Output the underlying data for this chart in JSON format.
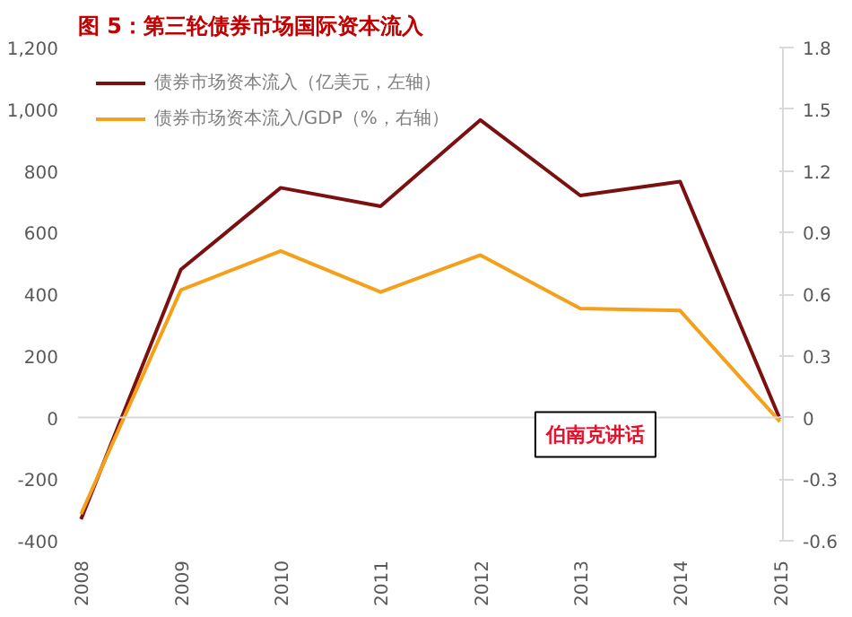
{
  "chart_data": {
    "type": "line",
    "title": "图 5：第三轮债券市场国际资本流入",
    "categories": [
      "2008",
      "2009",
      "2010",
      "2011",
      "2012",
      "2013",
      "2014",
      "2015"
    ],
    "series": [
      {
        "name": "债券市场资本流入（亿美元，左轴）",
        "color": "#7b1010",
        "values": [
          -330,
          480,
          745,
          685,
          965,
          720,
          765,
          -5
        ]
      },
      {
        "name": "债券市场资本流入/GDP（%，右轴）",
        "color": "#f5a01a",
        "axis": "y2",
        "values": [
          -0.47,
          0.62,
          0.81,
          0.61,
          0.79,
          0.53,
          0.52,
          -0.02
        ]
      }
    ],
    "ylim": [
      -400,
      1200
    ],
    "yticks": [
      -400,
      -200,
      0,
      200,
      400,
      600,
      800,
      {
        "value": 1000,
        "label": "1,000"
      },
      {
        "value": 1200,
        "label": "1,200"
      }
    ],
    "y2lim": [
      -0.6,
      1.8
    ],
    "y2ticks": [
      -0.6,
      -0.3,
      0,
      0.3,
      0.6,
      0.9,
      1.2,
      1.5,
      1.8
    ],
    "ref_lines": [
      {
        "axis": "y",
        "value": 0,
        "color": "#d9d9d9"
      }
    ],
    "annotations": [
      "伯南克讲话"
    ],
    "legend": "top left",
    "grid": false,
    "marker": "none",
    "line_style": "solid"
  }
}
